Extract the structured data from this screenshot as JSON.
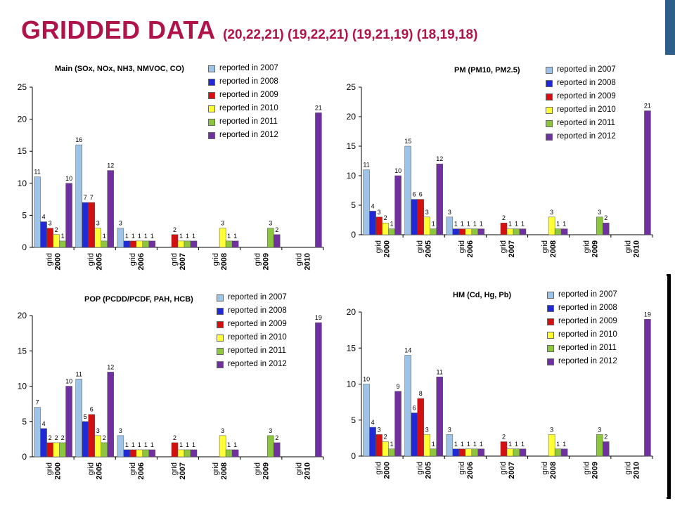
{
  "slide": {
    "title": "GRIDDED DATA",
    "subtitle": "(20,22,21) (19,22,21) (19,21,19) (18,19,18)"
  },
  "colors": {
    "title": "#b0134a",
    "accent": "#2e5f8a"
  },
  "series_colors": [
    "#9dc3e6",
    "#1f2ad6",
    "#d40f0f",
    "#ffff33",
    "#8cc63f",
    "#7030a0"
  ],
  "chart_data": [
    {
      "type": "bar",
      "title": "Main (SOx, NOx, NH3, NMVOC, CO)",
      "categories": [
        "grid 2000",
        "grid 2005",
        "grid 2006",
        "grid 2007",
        "grid 2008",
        "grid 2009",
        "grid 2010"
      ],
      "ylim": [
        0,
        25
      ],
      "yticks": [
        0,
        5,
        10,
        15,
        20,
        25
      ],
      "legend": "top-right",
      "series": [
        {
          "name": "reported in 2007",
          "values": [
            11,
            16,
            3,
            null,
            null,
            null,
            null
          ]
        },
        {
          "name": "reported in 2008",
          "values": [
            4,
            7,
            1,
            null,
            null,
            null,
            null
          ]
        },
        {
          "name": "reported in 2009",
          "values": [
            3,
            7,
            1,
            2,
            null,
            null,
            null
          ]
        },
        {
          "name": "reported in 2010",
          "values": [
            2,
            3,
            1,
            1,
            3,
            null,
            null
          ]
        },
        {
          "name": "reported in 2011",
          "values": [
            1,
            1,
            1,
            1,
            1,
            3,
            null
          ]
        },
        {
          "name": "reported in 2012",
          "values": [
            10,
            12,
            1,
            1,
            1,
            2,
            21
          ]
        }
      ]
    },
    {
      "type": "bar",
      "title": "PM (PM10, PM2.5)",
      "categories": [
        "grid 2000",
        "grid 2005",
        "grid 2006",
        "grid 2007",
        "grid 2008",
        "grid 2009",
        "grid 2010"
      ],
      "ylim": [
        0,
        25
      ],
      "yticks": [
        0,
        5,
        10,
        15,
        20,
        25
      ],
      "legend": "top-right",
      "series": [
        {
          "name": "reported in 2007",
          "values": [
            11,
            15,
            3,
            null,
            null,
            null,
            null
          ]
        },
        {
          "name": "reported in 2008",
          "values": [
            4,
            6,
            1,
            null,
            null,
            null,
            null
          ]
        },
        {
          "name": "reported in 2009",
          "values": [
            3,
            6,
            1,
            2,
            null,
            null,
            null
          ]
        },
        {
          "name": "reported in 2010",
          "values": [
            2,
            3,
            1,
            1,
            3,
            null,
            null
          ]
        },
        {
          "name": "reported in 2011",
          "values": [
            1,
            1,
            1,
            1,
            1,
            3,
            null
          ]
        },
        {
          "name": "reported in 2012",
          "values": [
            10,
            12,
            1,
            1,
            1,
            2,
            21
          ]
        }
      ]
    },
    {
      "type": "bar",
      "title": "POP (PCDD/PCDF, PAH, HCB)",
      "categories": [
        "grid 2000",
        "grid 2005",
        "grid 2006",
        "grid 2007",
        "grid 2008",
        "grid 2009",
        "grid 2010"
      ],
      "ylim": [
        0,
        20
      ],
      "yticks": [
        0,
        5,
        10,
        15,
        20
      ],
      "legend": "top-right",
      "series": [
        {
          "name": "reported in 2007",
          "values": [
            7,
            11,
            3,
            null,
            null,
            null,
            null
          ]
        },
        {
          "name": "reported in 2008",
          "values": [
            4,
            5,
            1,
            null,
            null,
            null,
            null
          ]
        },
        {
          "name": "reported in 2009",
          "values": [
            2,
            6,
            1,
            2,
            null,
            null,
            null
          ]
        },
        {
          "name": "reported in 2010",
          "values": [
            2,
            3,
            1,
            1,
            3,
            null,
            null
          ]
        },
        {
          "name": "reported in 2011",
          "values": [
            2,
            2,
            1,
            1,
            1,
            3,
            null
          ]
        },
        {
          "name": "reported in 2012",
          "values": [
            10,
            12,
            1,
            1,
            1,
            2,
            19
          ]
        }
      ]
    },
    {
      "type": "bar",
      "title": "HM (Cd, Hg, Pb)",
      "categories": [
        "grid 2000",
        "grid 2005",
        "grid 2006",
        "grid 2007",
        "grid 2008",
        "grid 2009",
        "grid 2010"
      ],
      "ylim": [
        0,
        20
      ],
      "yticks": [
        0,
        5,
        10,
        15,
        20
      ],
      "legend": "top-right",
      "series": [
        {
          "name": "reported in 2007",
          "values": [
            10,
            14,
            3,
            null,
            null,
            null,
            null
          ]
        },
        {
          "name": "reported in 2008",
          "values": [
            4,
            6,
            1,
            null,
            null,
            null,
            null
          ]
        },
        {
          "name": "reported in 2009",
          "values": [
            3,
            8,
            1,
            2,
            null,
            null,
            null
          ]
        },
        {
          "name": "reported in 2010",
          "values": [
            2,
            3,
            1,
            1,
            3,
            null,
            null
          ]
        },
        {
          "name": "reported in 2011",
          "values": [
            1,
            1,
            1,
            1,
            1,
            3,
            null
          ]
        },
        {
          "name": "reported in 2012",
          "values": [
            9,
            11,
            1,
            1,
            1,
            2,
            19
          ]
        }
      ]
    }
  ]
}
